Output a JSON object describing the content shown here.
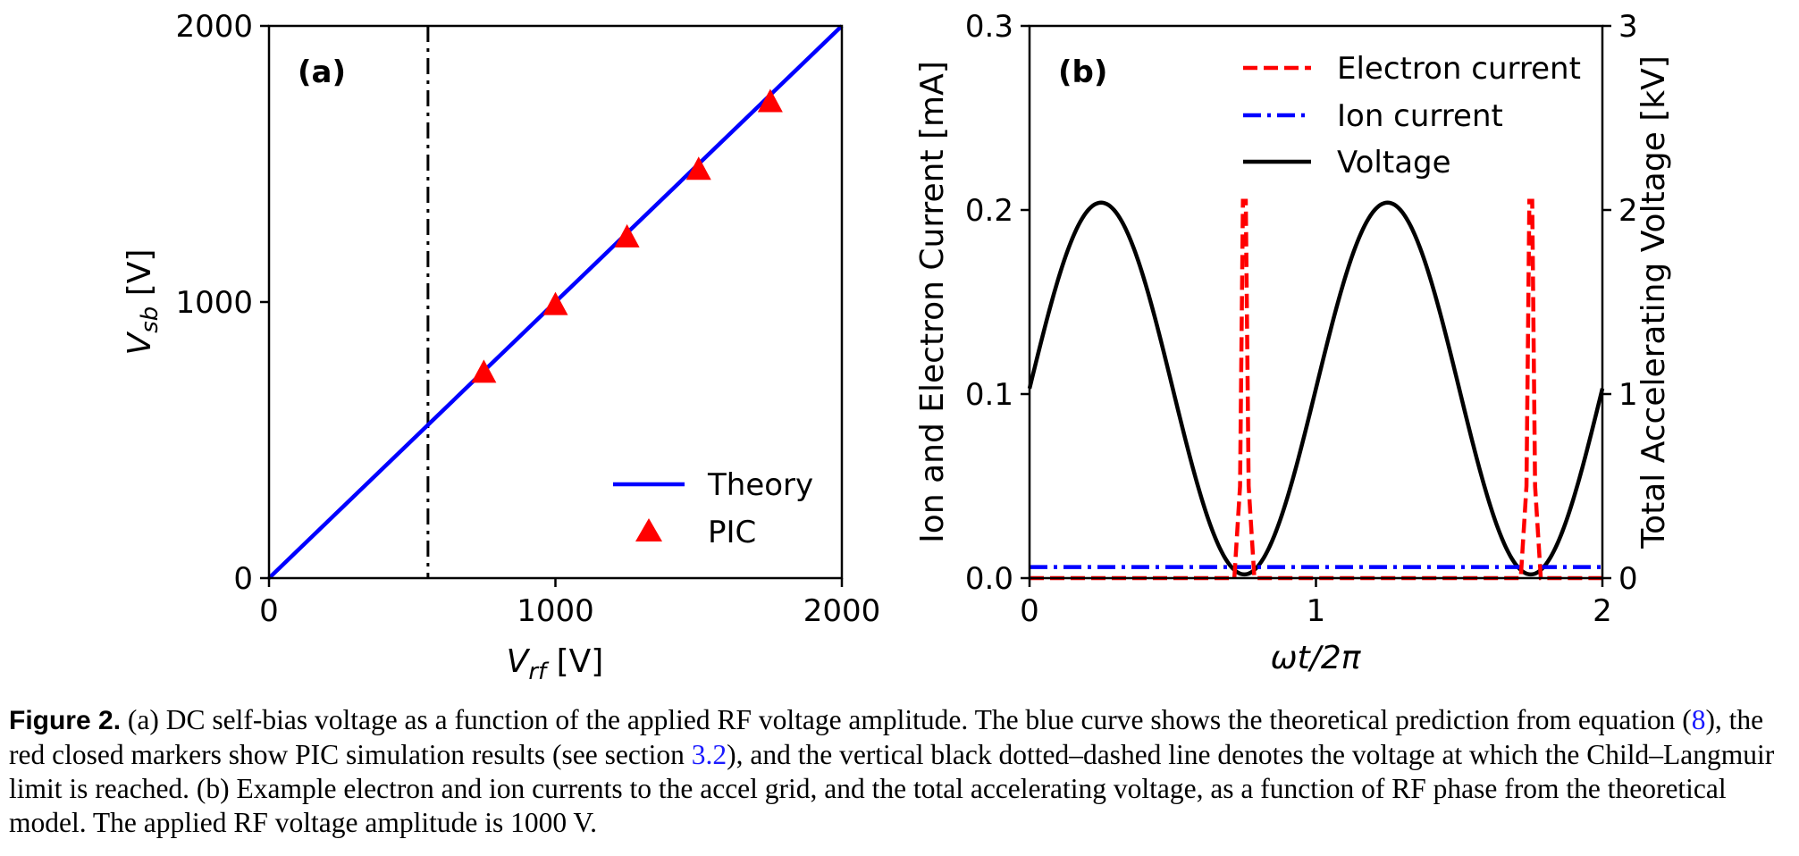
{
  "chart_data": [
    {
      "type": "line",
      "panel": "(a)",
      "xlabel_base": "V",
      "xlabel_sub": "rf",
      "xlabel_unit": " [V]",
      "ylabel_base": "V",
      "ylabel_sub": "sb",
      "ylabel_unit": " [V]",
      "xlim": [
        0,
        2000
      ],
      "ylim": [
        0,
        2000
      ],
      "xticks": [
        0,
        1000,
        2000
      ],
      "yticks": [
        0,
        1000,
        2000
      ],
      "xtick_labels": [
        "0",
        "1000",
        "2000"
      ],
      "ytick_labels": [
        "0",
        "1000",
        "2000"
      ],
      "legend_position": "lower-right",
      "series": [
        {
          "name": "Theory",
          "color": "#0000ff",
          "style": "solid",
          "marker": "none",
          "x": [
            0,
            2000
          ],
          "y": [
            0,
            2000
          ]
        },
        {
          "name": "PIC",
          "color": "#ff0000",
          "style": "none",
          "marker": "triangle",
          "x": [
            750,
            1000,
            1250,
            1500,
            1750
          ],
          "y": [
            740,
            985,
            1230,
            1475,
            1720
          ]
        }
      ],
      "vline": {
        "x": 555,
        "color": "#000000",
        "style": "dashdot"
      }
    },
    {
      "type": "line",
      "panel": "(b)",
      "xlabel": "ωt/2π",
      "ylabel_left": "Ion and Electron Current [mA]",
      "ylabel_right": "Total Accelerating Voltage [kV]",
      "xlim": [
        0,
        2
      ],
      "ylim_left": [
        0,
        0.3
      ],
      "ylim_right": [
        0,
        3
      ],
      "xticks": [
        0,
        1,
        2
      ],
      "xtick_labels": [
        "0",
        "1",
        "2"
      ],
      "yticks_left": [
        0,
        0.1,
        0.2,
        0.3
      ],
      "ytick_labels_left": [
        "0.0",
        "0.1",
        "0.2",
        "0.3"
      ],
      "yticks_right": [
        0,
        1,
        2,
        3
      ],
      "ytick_labels_right": [
        "0",
        "1",
        "2",
        "3"
      ],
      "legend_position": "upper-right",
      "series": [
        {
          "name": "Electron current",
          "axis": "left",
          "color": "#ff0000",
          "style": "dashed",
          "x": [
            0,
            0.715,
            0.735,
            0.745,
            0.755,
            0.765,
            0.785,
            1.715,
            1.735,
            1.745,
            1.755,
            1.765,
            1.785,
            2.0
          ],
          "y": [
            0.0,
            0.0,
            0.05,
            0.205,
            0.205,
            0.05,
            0.0,
            0.0,
            0.05,
            0.205,
            0.205,
            0.05,
            0.0,
            0.0
          ]
        },
        {
          "name": "Ion current",
          "axis": "left",
          "color": "#0000ff",
          "style": "dashdot",
          "x": [
            0,
            2
          ],
          "y": [
            0.006,
            0.006
          ]
        },
        {
          "name": "Voltage",
          "axis": "right",
          "color": "#000000",
          "style": "solid",
          "model": "1.01 + 1.01*sin(2*pi*x) + 0.02",
          "x_range": [
            0,
            2
          ]
        }
      ]
    }
  ],
  "caption": {
    "label": "Figure 2.",
    "t1": " (a) DC self-bias voltage as a function of the applied RF voltage amplitude. The blue curve shows the theoretical prediction from equation (",
    "ref1": "8",
    "t2": "), the red closed markers show PIC simulation results (see section ",
    "ref2": "3.2",
    "t3": "), and the vertical black dotted–dashed line denotes the voltage at which the Child–Langmuir limit is reached. (b) Example electron and ion currents to the accel grid, and the total accelerating voltage, as a function of RF phase from the theoretical model. The applied RF voltage amplitude is 1000 V."
  }
}
